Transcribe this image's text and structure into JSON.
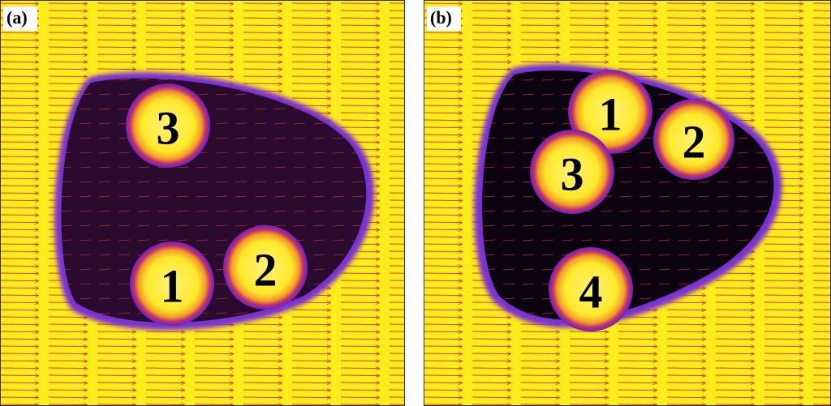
{
  "panels": [
    {
      "label": "(a)",
      "particles": [
        "3",
        "1",
        "2"
      ]
    },
    {
      "label": "(b)",
      "particles": [
        "1",
        "2",
        "3",
        "4"
      ]
    }
  ]
}
